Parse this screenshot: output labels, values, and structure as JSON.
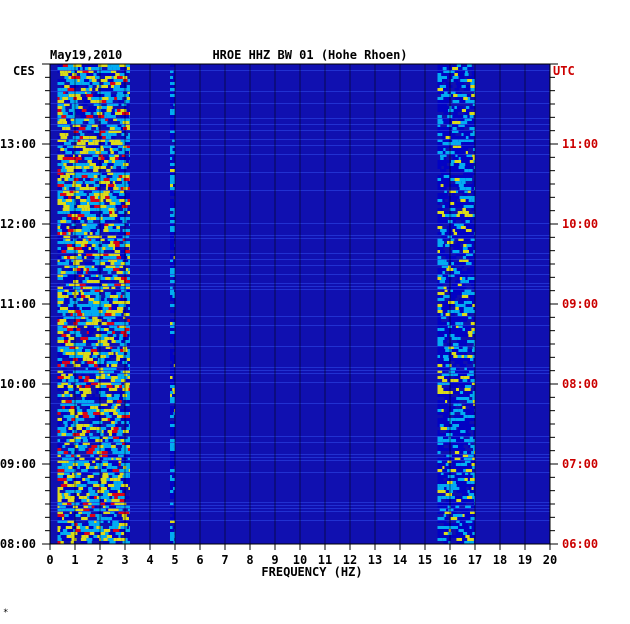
{
  "chart_data": {
    "type": "heatmap",
    "date": "May19,2010",
    "title": "HROE HHZ BW 01 (Hohe Rhoen)",
    "left_tz_label": "CES",
    "right_tz_label": "UTC",
    "xlabel": "FREQUENCY (HZ)",
    "xlim": [
      0,
      20
    ],
    "x_ticks": [
      "0",
      "1",
      "2",
      "3",
      "4",
      "5",
      "6",
      "7",
      "8",
      "9",
      "10",
      "11",
      "12",
      "13",
      "14",
      "15",
      "16",
      "17",
      "18",
      "19",
      "20"
    ],
    "y_range_hours_ces": [
      8.0,
      14.0
    ],
    "left_time_ticks": [
      "08:00",
      "09:00",
      "10:00",
      "11:00",
      "12:00",
      "13:00"
    ],
    "right_time_ticks": [
      "06:00",
      "07:00",
      "08:00",
      "09:00",
      "10:00",
      "11:00"
    ],
    "grid": true,
    "colors": {
      "background": "#1010b0",
      "low": "#0000c8",
      "mid": "#00c8ff",
      "high": "#ffff00",
      "peak": "#ff0000",
      "utc_label": "#cc0000",
      "axis": "#000000"
    },
    "energy_bands_hz": [
      {
        "from": 0.3,
        "to": 3.2,
        "level": "high"
      },
      {
        "from": 4.8,
        "to": 5.0,
        "level": "mid"
      },
      {
        "from": 15.5,
        "to": 17.0,
        "level": "mid"
      }
    ]
  },
  "footer_mark": "*"
}
